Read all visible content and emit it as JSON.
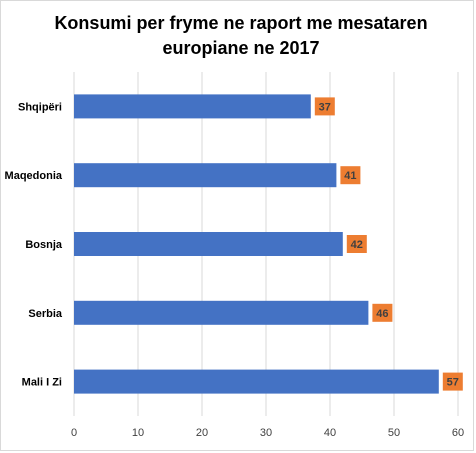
{
  "chart_data": {
    "type": "bar",
    "orientation": "horizontal",
    "title_lines": [
      "Konsumi per fryme ne raport me mesataren",
      "europiane ne 2017"
    ],
    "categories": [
      "Shqipëri",
      "Maqedonia",
      "Bosnja",
      "Serbia",
      "Mali I Zi"
    ],
    "values": [
      37,
      41,
      42,
      46,
      57
    ],
    "data_labels": [
      "37",
      "41",
      "42",
      "46",
      "57"
    ],
    "xlim": [
      0,
      60
    ],
    "xticks": [
      0,
      10,
      20,
      30,
      40,
      50,
      60
    ],
    "grid": "vertical",
    "legend": "none",
    "xlabel": "",
    "ylabel": "",
    "colors": {
      "bar": "#4472C4",
      "data_label_bg": "#ED7D31",
      "gridline": "#d9d9d9"
    }
  }
}
